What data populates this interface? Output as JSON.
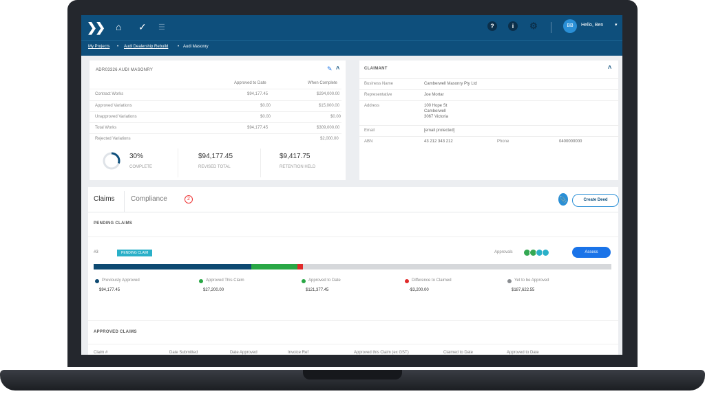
{
  "header": {
    "user_initials": "BB",
    "greeting": "Hello, Ben"
  },
  "breadcrumb": {
    "items": [
      "My Projects",
      "Audi Dealership Rebuild",
      "Audi Masonry"
    ],
    "separator": "•"
  },
  "summary_card": {
    "title": "ADR03326 AUDI MASONRY",
    "col1": "Approved to Date",
    "col2": "When Complete",
    "rows": [
      {
        "label": "Contract Works",
        "approved": "$94,177.45",
        "complete": "$294,000.00"
      },
      {
        "label": "Approved Variations",
        "approved": "$0.00",
        "complete": "$15,000.00"
      },
      {
        "label": "Unapproved Variations",
        "approved": "$0.00",
        "complete": "$0.00"
      },
      {
        "label": "Total Works",
        "approved": "$94,177.45",
        "complete": "$309,000.00"
      },
      {
        "label": "Rejected Variations",
        "approved": "",
        "complete": "$2,000.00"
      }
    ],
    "kpi": [
      {
        "value": "30%",
        "label": "COMPLETE"
      },
      {
        "value": "$94,177.45",
        "label": "REVISED TOTAL"
      },
      {
        "value": "$9,417.75",
        "label": "RETENTION HELD"
      }
    ],
    "complete_percent": 30
  },
  "claimant_card": {
    "title": "CLAIMANT",
    "business_name_label": "Business Name",
    "business_name": "Camberwell Masonry Pty Ltd",
    "representative_label": "Representative",
    "representative": "Joe Mortar",
    "address_label": "Address",
    "address_lines": [
      "100 Hope St",
      "Camberwell",
      "3067 Victoria"
    ],
    "email_label": "Email",
    "email": "[email protected]",
    "abn_label": "ABN",
    "abn": "43 212 343 212",
    "phone_label": "Phone",
    "phone": "0400000000"
  },
  "tabs": {
    "claims": "Claims",
    "compliance": "Compliance",
    "compliance_badge": "2",
    "create_deed": "Create Deed"
  },
  "pending": {
    "heading": "PENDING CLAIMS",
    "row_number": "#3",
    "tag": "PENDING CLAIM",
    "approvals_label": "Approvals",
    "assess": "Assess",
    "approval_dot_colors": [
      "#34a853",
      "#34a853",
      "#2ab0c8",
      "#2ab0c8"
    ],
    "bar": [
      {
        "color": "#0e4a72",
        "fraction": 0.305
      },
      {
        "color": "#29a745",
        "fraction": 0.088
      },
      {
        "color": "#e02a2a",
        "fraction": 0.011
      }
    ],
    "legend": [
      {
        "label": "Previously Approved",
        "value": "$94,177.45",
        "color": "#0e4a72"
      },
      {
        "label": "Approved This Claim",
        "value": "$27,200.00",
        "color": "#29a745"
      },
      {
        "label": "Approved to Date",
        "value": "$121,377.45",
        "color": "#29a745"
      },
      {
        "label": "Difference to Claimed",
        "value": "-$3,200.00",
        "color": "#e02a2a"
      },
      {
        "label": "Yet to be Approved",
        "value": "$187,622.55",
        "color": "#8a8d91"
      }
    ]
  },
  "approved": {
    "heading": "APPROVED CLAIMS",
    "columns": [
      "Claim #",
      "Date Submitted",
      "Date Approved",
      "Invoice Ref",
      "Approved this Claim (ex GST)",
      "Claimed to Date",
      "Approved to Date"
    ]
  }
}
